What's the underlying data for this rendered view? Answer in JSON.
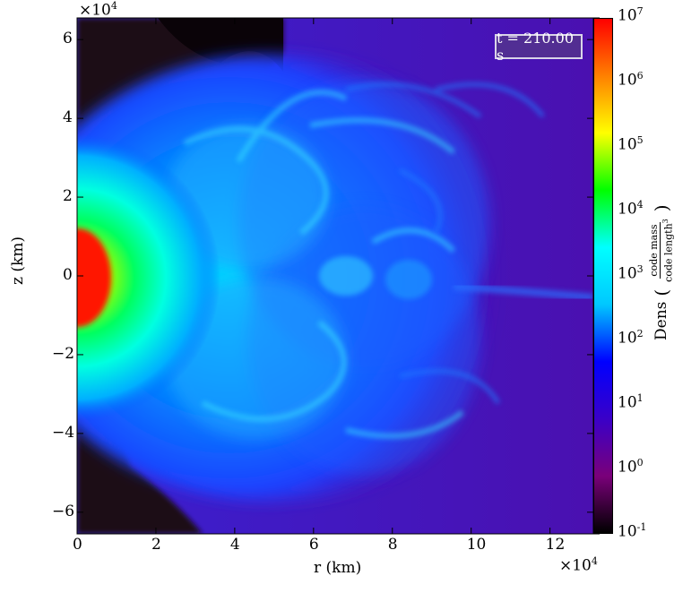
{
  "timestamp": "t = 210.00 s",
  "x_axis": {
    "label": "r  (km)",
    "multiplier": "×10",
    "multiplier_exp": "4",
    "ticks": [
      "0",
      "2",
      "4",
      "6",
      "8",
      "10",
      "12"
    ]
  },
  "y_axis": {
    "label": "z  (km)",
    "multiplier": "×10",
    "multiplier_exp": "4",
    "ticks": [
      "6",
      "4",
      "2",
      "0",
      "−2",
      "−4",
      "−6"
    ]
  },
  "colorbar": {
    "label": "Dens",
    "unit_num": "code mass",
    "unit_den": "code length",
    "unit_den_exp": "3",
    "scale": "log",
    "ticks": [
      {
        "base": "10",
        "exp": "7"
      },
      {
        "base": "10",
        "exp": "6"
      },
      {
        "base": "10",
        "exp": "5"
      },
      {
        "base": "10",
        "exp": "4"
      },
      {
        "base": "10",
        "exp": "3"
      },
      {
        "base": "10",
        "exp": "2"
      },
      {
        "base": "10",
        "exp": "1"
      },
      {
        "base": "10",
        "exp": "0"
      },
      {
        "base": "10",
        "exp": "-1"
      }
    ],
    "colormap": [
      "#000000",
      "#7a007a",
      "#3a00c8",
      "#0000ff",
      "#00c8ff",
      "#00ffff",
      "#00ff00",
      "#ffff00",
      "#ff8000",
      "#ff0000"
    ]
  },
  "colors": {
    "background_field": "#4a10b8",
    "core": "#ff2000",
    "plume": "#1a6cff",
    "dark_regions": "#140614"
  }
}
